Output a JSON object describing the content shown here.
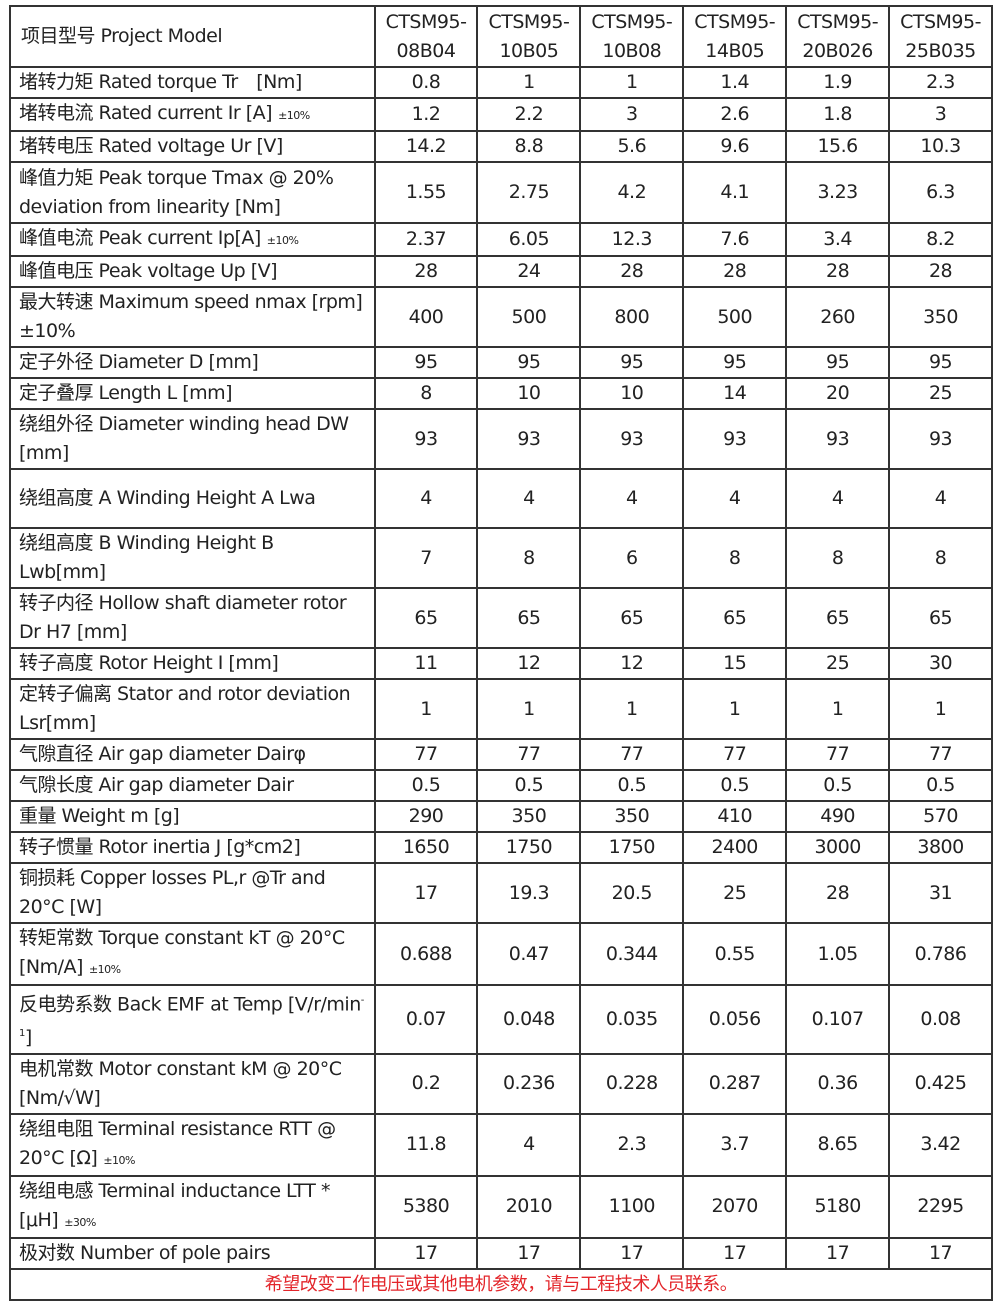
{
  "header": {
    "label": "项目型号 Project Model",
    "models": [
      "CTSM95-08B04",
      "CTSM95-10B05",
      "CTSM95-10B08",
      "CTSM95-14B05",
      "CTSM95-20B026",
      "CTSM95-25B035"
    ]
  },
  "rows": [
    {
      "label": "堵转力矩 Rated torque Tr　[Nm]",
      "values": [
        "0.8",
        "1",
        "1",
        "1.4",
        "1.9",
        "2.3"
      ]
    },
    {
      "label": "堵转电流 Rated current Ir [A]",
      "tol": "±10%",
      "values": [
        "1.2",
        "2.2",
        "3",
        "2.6",
        "1.8",
        "3"
      ]
    },
    {
      "label": "堵转电压 Rated voltage Ur [V]",
      "values": [
        "14.2",
        "8.8",
        "5.6",
        "9.6",
        "15.6",
        "10.3"
      ]
    },
    {
      "label": "峰值力矩 Peak torque Tmax @ 20% deviation from linearity [Nm]",
      "values": [
        "1.55",
        "2.75",
        "4.2",
        "4.1",
        "3.23",
        "6.3"
      ]
    },
    {
      "label": "峰值电流 Peak current Ip[A]",
      "tol": "±10%",
      "values": [
        "2.37",
        "6.05",
        "12.3",
        "7.6",
        "3.4",
        "8.2"
      ]
    },
    {
      "label": "峰值电压 Peak voltage Up [V]",
      "values": [
        "28",
        "24",
        "28",
        "28",
        "28",
        "28"
      ]
    },
    {
      "label": "最大转速 Maximum speed nmax [rpm] ±10%",
      "values": [
        "400",
        "500",
        "800",
        "500",
        "260",
        "350"
      ]
    },
    {
      "label": "定子外径 Diameter D [mm]",
      "values": [
        "95",
        "95",
        "95",
        "95",
        "95",
        "95"
      ]
    },
    {
      "label": "定子叠厚 Length L [mm]",
      "values": [
        "8",
        "10",
        "10",
        "14",
        "20",
        "25"
      ]
    },
    {
      "label": "绕组外径 Diameter winding head DW [mm]",
      "values": [
        "93",
        "93",
        "93",
        "93",
        "93",
        "93"
      ]
    },
    {
      "label": "绕组高度 A Winding Height A Lwa",
      "values": [
        "4",
        "4",
        "4",
        "4",
        "4",
        "4"
      ]
    },
    {
      "label": "绕组高度 B Winding Height B Lwb[mm]",
      "values": [
        "7",
        "8",
        "6",
        "8",
        "8",
        "8"
      ]
    },
    {
      "label": "转子内径 Hollow shaft diameter rotor Dr H7 [mm]",
      "values": [
        "65",
        "65",
        "65",
        "65",
        "65",
        "65"
      ]
    },
    {
      "label": "转子高度 Rotor Height I [mm]",
      "values": [
        "11",
        "12",
        "12",
        "15",
        "25",
        "30"
      ]
    },
    {
      "label": "定转子偏离 Stator and rotor deviation Lsr[mm]",
      "values": [
        "1",
        "1",
        "1",
        "1",
        "1",
        "1"
      ]
    },
    {
      "label": "气隙直径 Air gap diameter Dairφ",
      "values": [
        "77",
        "77",
        "77",
        "77",
        "77",
        "77"
      ]
    },
    {
      "label": "气隙长度 Air gap diameter Dair",
      "values": [
        "0.5",
        "0.5",
        "0.5",
        "0.5",
        "0.5",
        "0.5"
      ]
    },
    {
      "label": "重量 Weight m [g]",
      "values": [
        "290",
        "350",
        "350",
        "410",
        "490",
        "570"
      ]
    },
    {
      "label": "转子惯量 Rotor inertia J [g*cm2]",
      "values": [
        "1650",
        "1750",
        "1750",
        "2400",
        "3000",
        "3800"
      ]
    },
    {
      "label": "铜损耗 Copper losses PL,r @Tr and 20°C [W]",
      "values": [
        "17",
        "19.3",
        "20.5",
        "25",
        "28",
        "31"
      ]
    },
    {
      "label": "转矩常数 Torque constant kT @ 20°C [Nm/A]",
      "tol": "±10%",
      "values": [
        "0.688",
        "0.47",
        "0.344",
        "0.55",
        "1.05",
        "0.786"
      ]
    },
    {
      "label": "反电势系数 Back EMF at Temp [V/r/min",
      "sup": "-1",
      "label_end": "]",
      "values": [
        "0.07",
        "0.048",
        "0.035",
        "0.056",
        "0.107",
        "0.08"
      ]
    },
    {
      "label": "电机常数 Motor constant kM @ 20°C [Nm/√W]",
      "values": [
        "0.2",
        "0.236",
        "0.228",
        "0.287",
        "0.36",
        "0.425"
      ]
    },
    {
      "label": "绕组电阻 Terminal resistance RTT @ 20°C [Ω]",
      "tol": "±10%",
      "values": [
        "11.8",
        "4",
        "2.3",
        "3.7",
        "8.65",
        "3.42"
      ]
    },
    {
      "label": "绕组电感 Terminal inductance LTT * [μH]",
      "tol": "±30%",
      "values": [
        "5380",
        "2010",
        "1100",
        "2070",
        "5180",
        "2295"
      ]
    },
    {
      "label": "极对数 Number of pole pairs",
      "values": [
        "17",
        "17",
        "17",
        "17",
        "17",
        "17"
      ]
    }
  ],
  "footer": "希望改变工作电压或其他电机参数，请与工程技术人员联系。",
  "colors": {
    "footer_text": "#e3262b",
    "border": "#333333"
  }
}
